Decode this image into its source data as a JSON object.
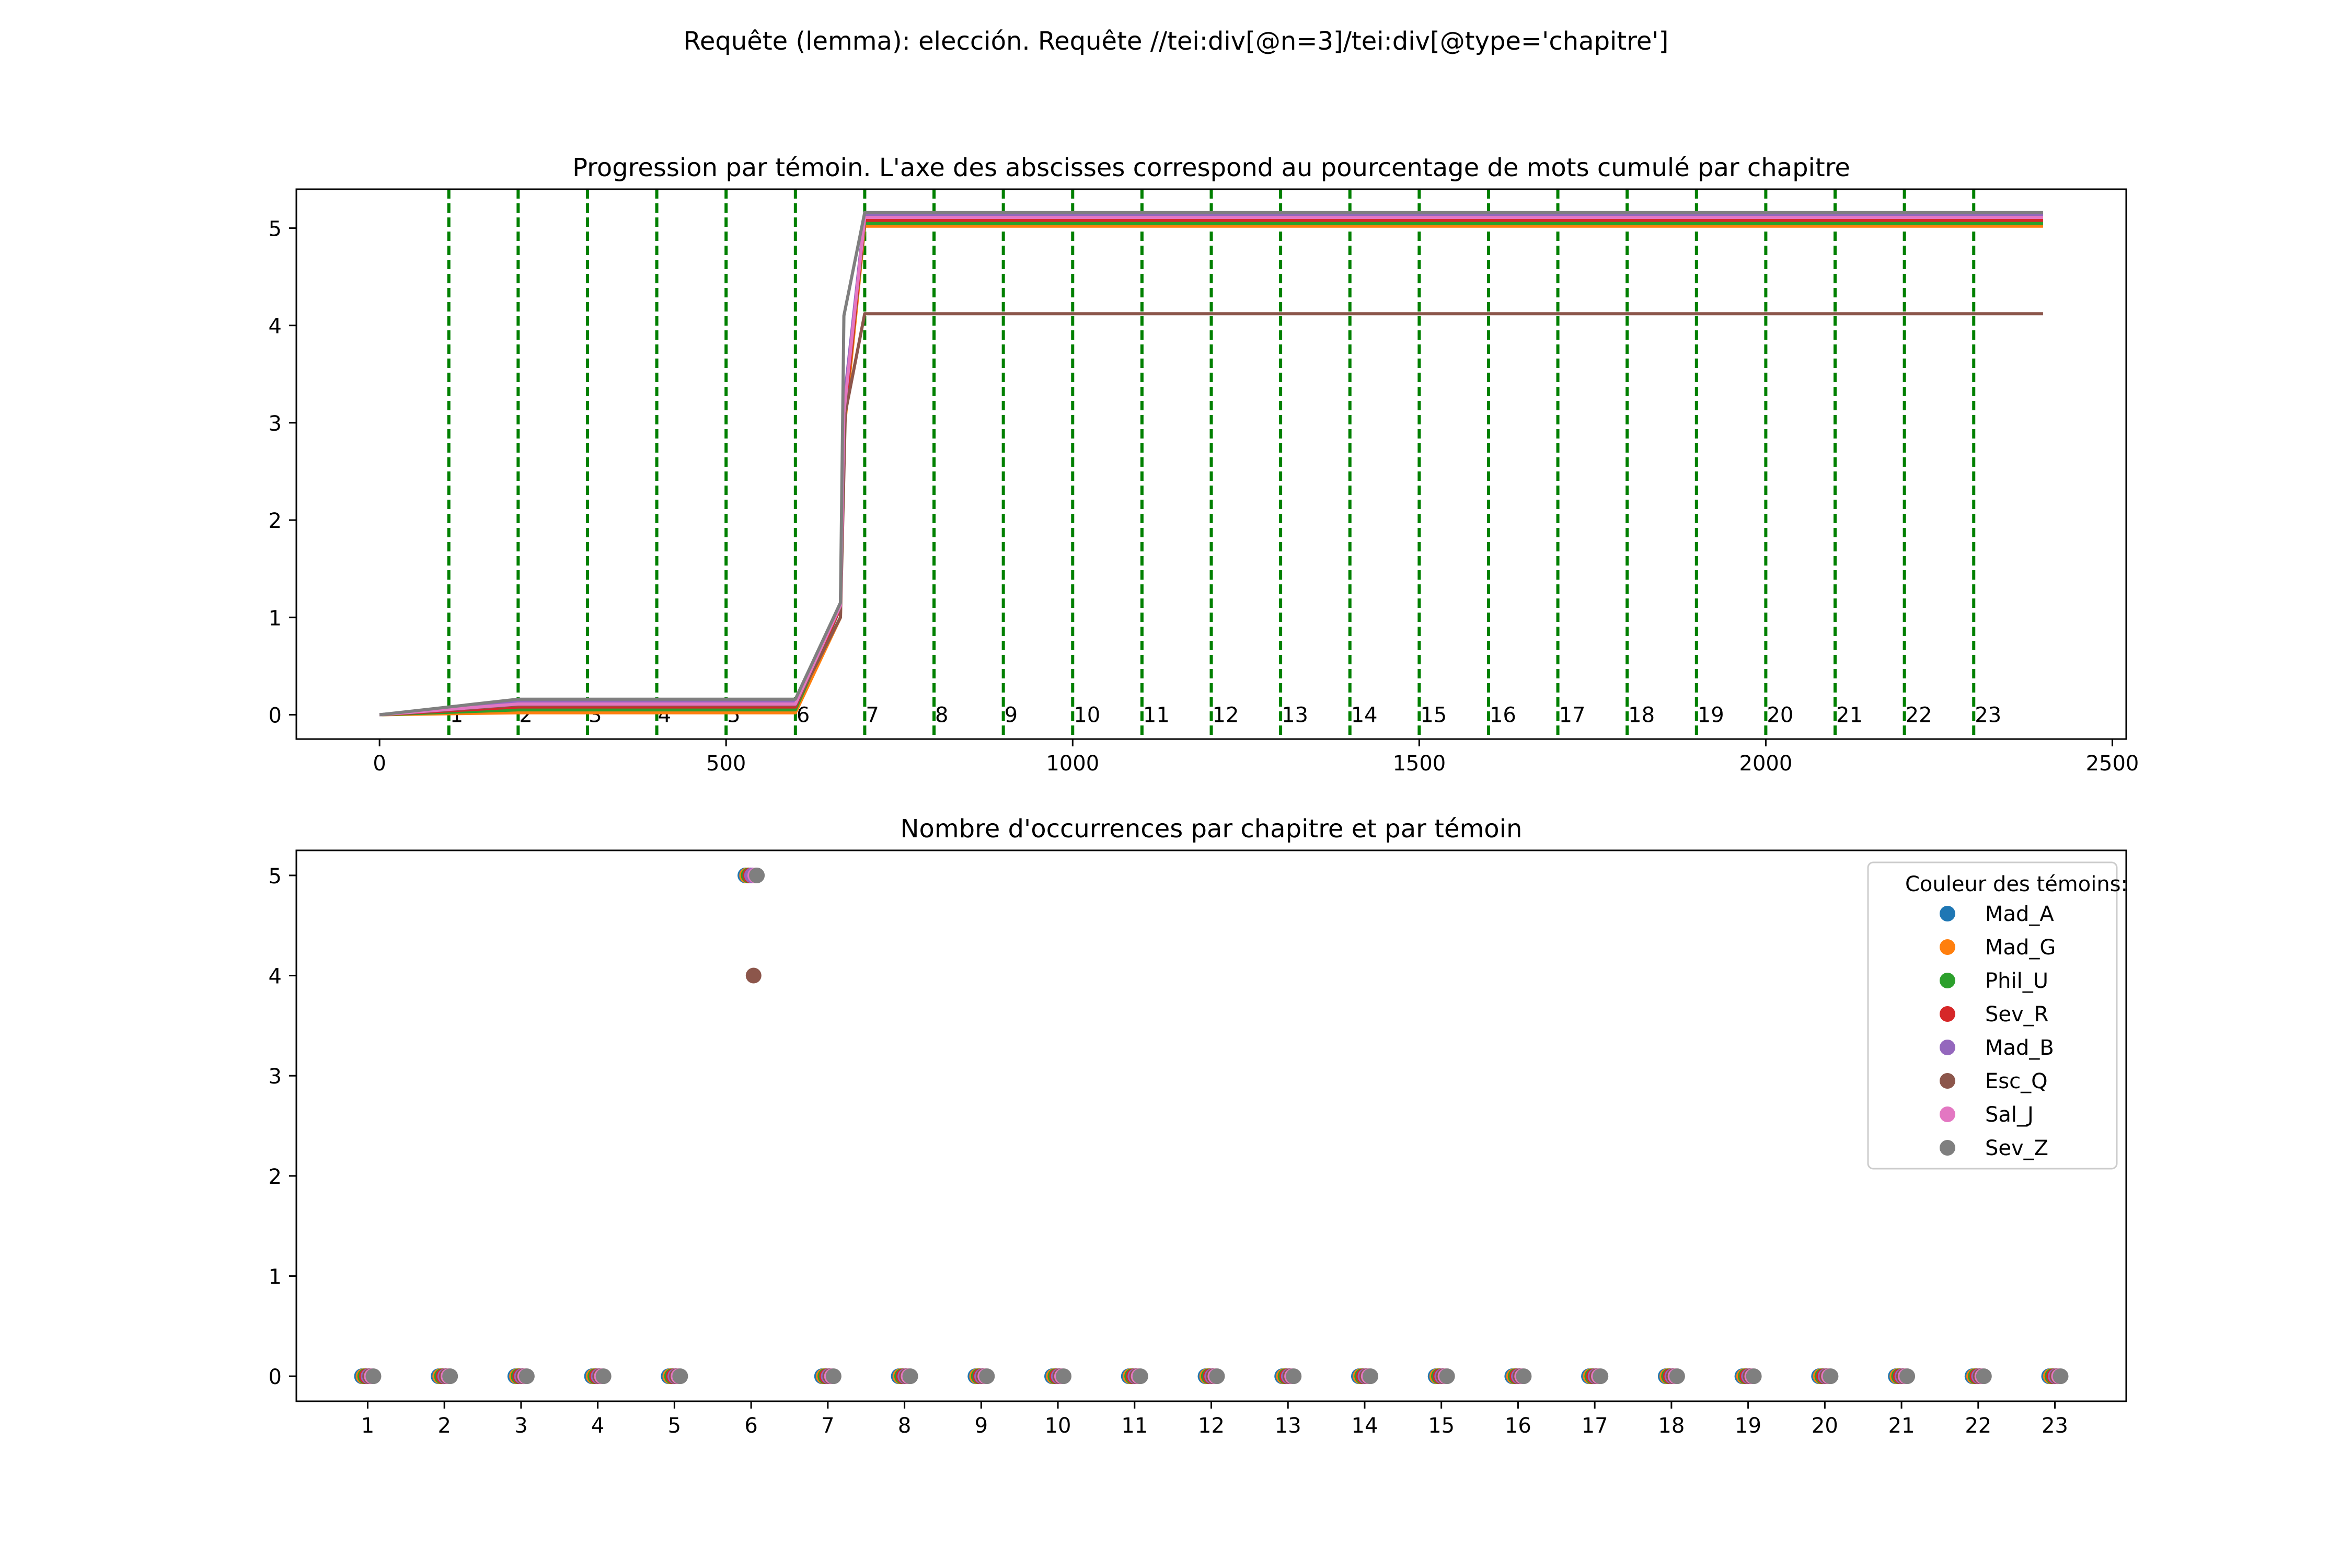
{
  "figure": {
    "suptitle": "Requête (lemma): elección. Requête //tei:div[@n=3]/tei:div[@type='chapitre']"
  },
  "witnesses": [
    {
      "name": "Mad_A",
      "color": "#1f77b4"
    },
    {
      "name": "Mad_G",
      "color": "#ff7f0e"
    },
    {
      "name": "Phil_U",
      "color": "#2ca02c"
    },
    {
      "name": "Sev_R",
      "color": "#d62728"
    },
    {
      "name": "Mad_B",
      "color": "#9467bd"
    },
    {
      "name": "Esc_Q",
      "color": "#8c564b"
    },
    {
      "name": "Sal_J",
      "color": "#e377c2"
    },
    {
      "name": "Sev_Z",
      "color": "#7f7f7f"
    }
  ],
  "chart_data": [
    {
      "type": "line",
      "title": "Progression par témoin. L'axe des abscisses correspond au pourcentage de mots cumulé par chapitre",
      "xlim": [
        -120,
        2520
      ],
      "ylim": [
        -0.25,
        5.4
      ],
      "xticks": [
        0,
        500,
        1000,
        1500,
        2000,
        2500
      ],
      "yticks": [
        0,
        1,
        2,
        3,
        4,
        5
      ],
      "grid": false,
      "chapter_lines": {
        "style": "dashed",
        "color": "#008000",
        "x": [
          100,
          200,
          300,
          400,
          500,
          600,
          700,
          800,
          900,
          1000,
          1100,
          1200,
          1300,
          1400,
          1500,
          1600,
          1700,
          1800,
          1900,
          2000,
          2100,
          2200,
          2300
        ],
        "labels": [
          "1",
          "2",
          "3",
          "4",
          "5",
          "6",
          "7",
          "8",
          "9",
          "10",
          "11",
          "12",
          "13",
          "14",
          "15",
          "16",
          "17",
          "18",
          "19",
          "20",
          "21",
          "22",
          "23"
        ]
      },
      "series": [
        {
          "name": "Mad_A",
          "x": [
            0,
            200,
            600,
            665,
            670,
            700,
            2400
          ],
          "y": [
            0,
            0.03,
            0.03,
            1.1,
            3.0,
            5.03,
            5.03
          ]
        },
        {
          "name": "Mad_G",
          "x": [
            0,
            200,
            600,
            665,
            670,
            700,
            2400
          ],
          "y": [
            0,
            0.02,
            0.02,
            1.0,
            2.9,
            5.02,
            5.02
          ]
        },
        {
          "name": "Phil_U",
          "x": [
            0,
            200,
            600,
            665,
            670,
            700,
            2400
          ],
          "y": [
            0,
            0.05,
            0.05,
            1.1,
            3.0,
            5.05,
            5.05
          ]
        },
        {
          "name": "Sev_R",
          "x": [
            0,
            200,
            600,
            665,
            670,
            700,
            2400
          ],
          "y": [
            0,
            0.08,
            0.08,
            1.1,
            3.0,
            5.08,
            5.08
          ]
        },
        {
          "name": "Mad_B",
          "x": [
            0,
            200,
            600,
            665,
            670,
            700,
            2400
          ],
          "y": [
            0,
            0.14,
            0.14,
            1.15,
            3.2,
            5.14,
            5.14
          ]
        },
        {
          "name": "Esc_Q",
          "x": [
            0,
            200,
            600,
            665,
            672,
            700,
            2400
          ],
          "y": [
            0,
            0.1,
            0.1,
            1.0,
            3.1,
            4.12,
            4.12
          ]
        },
        {
          "name": "Sal_J",
          "x": [
            0,
            200,
            600,
            665,
            670,
            700,
            2400
          ],
          "y": [
            0,
            0.11,
            0.11,
            1.12,
            3.1,
            5.11,
            5.11
          ]
        },
        {
          "name": "Sev_Z",
          "x": [
            0,
            200,
            600,
            665,
            670,
            700,
            2400
          ],
          "y": [
            0,
            0.16,
            0.16,
            1.15,
            4.1,
            5.16,
            5.16
          ]
        }
      ]
    },
    {
      "type": "scatter",
      "title": "Nombre d'occurrences par chapitre et par témoin",
      "xlim": [
        0.07,
        23.93
      ],
      "ylim": [
        -0.25,
        5.25
      ],
      "xticks": [
        1,
        2,
        3,
        4,
        5,
        6,
        7,
        8,
        9,
        10,
        11,
        12,
        13,
        14,
        15,
        16,
        17,
        18,
        19,
        20,
        21,
        22,
        23
      ],
      "yticks": [
        0,
        1,
        2,
        3,
        4,
        5
      ],
      "grid": false,
      "legend": {
        "title": "Couleur des témoins:",
        "placement": "upper right"
      },
      "categories": [
        "1",
        "2",
        "3",
        "4",
        "5",
        "6",
        "7",
        "8",
        "9",
        "10",
        "11",
        "12",
        "13",
        "14",
        "15",
        "16",
        "17",
        "18",
        "19",
        "20",
        "21",
        "22",
        "23"
      ],
      "series": [
        {
          "name": "Mad_A",
          "values": [
            0,
            0,
            0,
            0,
            0,
            5,
            0,
            0,
            0,
            0,
            0,
            0,
            0,
            0,
            0,
            0,
            0,
            0,
            0,
            0,
            0,
            0,
            0
          ]
        },
        {
          "name": "Mad_G",
          "values": [
            0,
            0,
            0,
            0,
            0,
            5,
            0,
            0,
            0,
            0,
            0,
            0,
            0,
            0,
            0,
            0,
            0,
            0,
            0,
            0,
            0,
            0,
            0
          ]
        },
        {
          "name": "Phil_U",
          "values": [
            0,
            0,
            0,
            0,
            0,
            5,
            0,
            0,
            0,
            0,
            0,
            0,
            0,
            0,
            0,
            0,
            0,
            0,
            0,
            0,
            0,
            0,
            0
          ]
        },
        {
          "name": "Sev_R",
          "values": [
            0,
            0,
            0,
            0,
            0,
            5,
            0,
            0,
            0,
            0,
            0,
            0,
            0,
            0,
            0,
            0,
            0,
            0,
            0,
            0,
            0,
            0,
            0
          ]
        },
        {
          "name": "Mad_B",
          "values": [
            0,
            0,
            0,
            0,
            0,
            5,
            0,
            0,
            0,
            0,
            0,
            0,
            0,
            0,
            0,
            0,
            0,
            0,
            0,
            0,
            0,
            0,
            0
          ]
        },
        {
          "name": "Esc_Q",
          "values": [
            0,
            0,
            0,
            0,
            0,
            4,
            0,
            0,
            0,
            0,
            0,
            0,
            0,
            0,
            0,
            0,
            0,
            0,
            0,
            0,
            0,
            0,
            0
          ]
        },
        {
          "name": "Sal_J",
          "values": [
            0,
            0,
            0,
            0,
            0,
            5,
            0,
            0,
            0,
            0,
            0,
            0,
            0,
            0,
            0,
            0,
            0,
            0,
            0,
            0,
            0,
            0,
            0
          ]
        },
        {
          "name": "Sev_Z",
          "values": [
            0,
            0,
            0,
            0,
            0,
            5,
            0,
            0,
            0,
            0,
            0,
            0,
            0,
            0,
            0,
            0,
            0,
            0,
            0,
            0,
            0,
            0,
            0
          ]
        }
      ]
    }
  ]
}
